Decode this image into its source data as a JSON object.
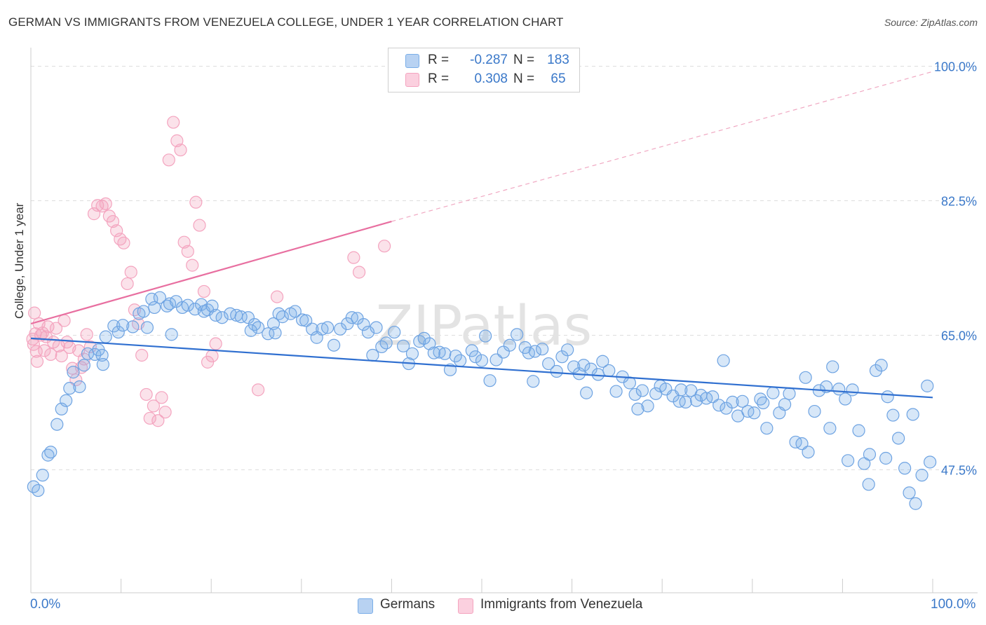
{
  "title": "GERMAN VS IMMIGRANTS FROM VENEZUELA COLLEGE, UNDER 1 YEAR CORRELATION CHART",
  "source": "Source: ZipAtlas.com",
  "watermark": "ZIPatlas",
  "legend": {
    "rows": [
      {
        "r_label": "R =",
        "r_value": "-0.287",
        "n_label": "N =",
        "n_value": "183",
        "color": "#7aaee8"
      },
      {
        "r_label": "R =",
        "r_value": "0.308",
        "n_label": "N =",
        "n_value": "65",
        "color": "#f4a4bf"
      }
    ]
  },
  "bottom_legend": {
    "germans": "Germans",
    "venezuela": "Immigrants from Venezuela"
  },
  "chart_data": {
    "type": "scatter",
    "title": "GERMAN VS IMMIGRANTS FROM VENEZUELA COLLEGE, UNDER 1 YEAR CORRELATION CHART",
    "xlabel": "",
    "ylabel": "College, Under 1 year",
    "xlim": [
      0,
      100
    ],
    "ylim": [
      31.5,
      101.5
    ],
    "x_tick_labels": [
      "0.0%",
      "100.0%"
    ],
    "y_ticks": [
      47.5,
      65.0,
      82.5,
      100.0
    ],
    "y_tick_labels": [
      "47.5%",
      "65.0%",
      "82.5%",
      "100.0%"
    ],
    "grid": true,
    "series": [
      {
        "name": "Germans",
        "color": "#7aaee8",
        "line_color": "#2f6fd0",
        "trend": {
          "x0": 0,
          "y0": 64.6,
          "x1": 100,
          "y1": 56.9
        },
        "points": [
          [
            0.3,
            45.3
          ],
          [
            0.8,
            44.8
          ],
          [
            1.3,
            46.8
          ],
          [
            1.9,
            49.4
          ],
          [
            2.2,
            49.8
          ],
          [
            2.9,
            53.4
          ],
          [
            3.4,
            55.4
          ],
          [
            3.9,
            56.5
          ],
          [
            4.3,
            58.1
          ],
          [
            4.7,
            60.2
          ],
          [
            5.4,
            58.3
          ],
          [
            5.9,
            61.1
          ],
          [
            6.3,
            62.6
          ],
          [
            7.1,
            62.5
          ],
          [
            7.5,
            63.1
          ],
          [
            7.9,
            62.4
          ],
          [
            8.3,
            64.8
          ],
          [
            9.2,
            66.2
          ],
          [
            9.7,
            65.4
          ],
          [
            10.2,
            66.3
          ],
          [
            11.3,
            66.1
          ],
          [
            12.0,
            67.8
          ],
          [
            12.5,
            68.1
          ],
          [
            13.4,
            69.7
          ],
          [
            13.7,
            68.6
          ],
          [
            14.3,
            69.9
          ],
          [
            15.1,
            68.8
          ],
          [
            15.4,
            69.1
          ],
          [
            16.1,
            69.4
          ],
          [
            16.8,
            68.6
          ],
          [
            17.4,
            68.9
          ],
          [
            18.2,
            68.4
          ],
          [
            18.9,
            69.0
          ],
          [
            19.2,
            68.1
          ],
          [
            19.6,
            68.3
          ],
          [
            20.1,
            68.8
          ],
          [
            20.5,
            67.6
          ],
          [
            21.2,
            67.3
          ],
          [
            22.1,
            67.8
          ],
          [
            22.8,
            67.6
          ],
          [
            23.3,
            67.4
          ],
          [
            24.1,
            67.3
          ],
          [
            24.8,
            66.4
          ],
          [
            25.2,
            66.0
          ],
          [
            26.3,
            65.2
          ],
          [
            26.9,
            66.5
          ],
          [
            27.5,
            67.8
          ],
          [
            27.9,
            67.4
          ],
          [
            28.8,
            67.8
          ],
          [
            29.3,
            68.1
          ],
          [
            30.1,
            67.0
          ],
          [
            30.5,
            66.9
          ],
          [
            31.2,
            65.8
          ],
          [
            32.3,
            65.8
          ],
          [
            32.9,
            66.0
          ],
          [
            34.3,
            65.8
          ],
          [
            35.1,
            66.5
          ],
          [
            35.6,
            67.3
          ],
          [
            36.2,
            67.2
          ],
          [
            36.9,
            66.4
          ],
          [
            37.4,
            65.4
          ],
          [
            38.3,
            66.0
          ],
          [
            38.9,
            63.5
          ],
          [
            39.4,
            64.0
          ],
          [
            40.3,
            65.4
          ],
          [
            41.3,
            63.6
          ],
          [
            42.3,
            62.6
          ],
          [
            43.1,
            64.2
          ],
          [
            44.2,
            63.9
          ],
          [
            45.3,
            62.8
          ],
          [
            45.9,
            62.6
          ],
          [
            46.5,
            60.5
          ],
          [
            47.1,
            62.3
          ],
          [
            47.6,
            61.7
          ],
          [
            48.9,
            63.0
          ],
          [
            49.3,
            62.2
          ],
          [
            50.0,
            61.7
          ],
          [
            50.9,
            59.1
          ],
          [
            51.6,
            61.8
          ],
          [
            52.4,
            62.8
          ],
          [
            53.1,
            63.7
          ],
          [
            53.9,
            65.1
          ],
          [
            54.8,
            63.4
          ],
          [
            55.2,
            62.7
          ],
          [
            55.9,
            62.9
          ],
          [
            56.7,
            63.2
          ],
          [
            57.4,
            61.3
          ],
          [
            58.3,
            60.3
          ],
          [
            58.9,
            62.2
          ],
          [
            59.5,
            63.1
          ],
          [
            60.2,
            60.9
          ],
          [
            60.8,
            60.0
          ],
          [
            61.3,
            61.1
          ],
          [
            62.1,
            60.6
          ],
          [
            62.9,
            59.9
          ],
          [
            63.4,
            61.6
          ],
          [
            64.1,
            60.4
          ],
          [
            64.9,
            57.7
          ],
          [
            65.6,
            59.6
          ],
          [
            66.4,
            58.8
          ],
          [
            67.0,
            57.3
          ],
          [
            67.8,
            57.8
          ],
          [
            68.4,
            55.8
          ],
          [
            69.3,
            57.4
          ],
          [
            69.8,
            58.4
          ],
          [
            70.4,
            58.0
          ],
          [
            71.2,
            57.1
          ],
          [
            71.9,
            56.4
          ],
          [
            72.6,
            56.3
          ],
          [
            73.2,
            57.8
          ],
          [
            73.8,
            56.5
          ],
          [
            74.3,
            57.2
          ],
          [
            74.9,
            56.8
          ],
          [
            75.6,
            57.0
          ],
          [
            76.3,
            55.9
          ],
          [
            77.1,
            55.5
          ],
          [
            77.8,
            56.3
          ],
          [
            78.4,
            54.5
          ],
          [
            78.9,
            56.4
          ],
          [
            79.5,
            55.1
          ],
          [
            80.2,
            54.9
          ],
          [
            80.9,
            56.7
          ],
          [
            81.6,
            52.9
          ],
          [
            82.3,
            57.5
          ],
          [
            83.0,
            54.9
          ],
          [
            83.6,
            56.0
          ],
          [
            84.1,
            57.4
          ],
          [
            84.8,
            51.1
          ],
          [
            85.5,
            50.9
          ],
          [
            86.2,
            49.8
          ],
          [
            86.9,
            55.1
          ],
          [
            87.4,
            57.8
          ],
          [
            88.2,
            58.3
          ],
          [
            88.9,
            60.9
          ],
          [
            89.6,
            58.0
          ],
          [
            90.3,
            56.7
          ],
          [
            91.1,
            57.9
          ],
          [
            91.8,
            52.6
          ],
          [
            92.4,
            48.3
          ],
          [
            93.0,
            49.5
          ],
          [
            93.7,
            60.4
          ],
          [
            94.3,
            61.1
          ],
          [
            95.0,
            57.0
          ],
          [
            95.6,
            54.6
          ],
          [
            96.2,
            51.6
          ],
          [
            96.9,
            47.7
          ],
          [
            97.4,
            44.5
          ],
          [
            98.1,
            43.1
          ],
          [
            98.8,
            46.8
          ],
          [
            99.4,
            58.4
          ],
          [
            99.7,
            48.5
          ],
          [
            8.0,
            61.2
          ],
          [
            12.9,
            66.0
          ],
          [
            15.6,
            65.1
          ],
          [
            24.4,
            65.6
          ],
          [
            31.7,
            64.7
          ],
          [
            37.9,
            62.4
          ],
          [
            41.9,
            61.3
          ],
          [
            44.7,
            62.7
          ],
          [
            50.4,
            64.9
          ],
          [
            55.7,
            59.0
          ],
          [
            61.6,
            57.5
          ],
          [
            67.3,
            55.4
          ],
          [
            72.1,
            57.9
          ],
          [
            76.8,
            61.7
          ],
          [
            81.2,
            56.2
          ],
          [
            85.9,
            59.5
          ],
          [
            88.6,
            52.9
          ],
          [
            90.6,
            48.7
          ],
          [
            92.9,
            45.6
          ],
          [
            94.8,
            49.0
          ],
          [
            97.8,
            54.7
          ],
          [
            27.1,
            65.3
          ],
          [
            33.6,
            63.7
          ],
          [
            43.6,
            64.6
          ]
        ]
      },
      {
        "name": "Immigrants from Venezuela",
        "color": "#f4a4bf",
        "line_color": "#e86fa0",
        "trend": {
          "x0": 0,
          "y0": 66.5,
          "x1": 40,
          "y1": 79.8
        },
        "trend_extension": {
          "x0": 40,
          "y0": 79.8,
          "x1": 100,
          "y1": 99.3
        },
        "points": [
          [
            0.2,
            64.5
          ],
          [
            0.3,
            63.8
          ],
          [
            0.4,
            67.9
          ],
          [
            0.5,
            65.2
          ],
          [
            0.6,
            62.9
          ],
          [
            0.7,
            61.6
          ],
          [
            0.9,
            66.5
          ],
          [
            1.1,
            65.0
          ],
          [
            1.3,
            65.3
          ],
          [
            1.5,
            63.0
          ],
          [
            1.7,
            64.8
          ],
          [
            1.9,
            66.1
          ],
          [
            2.2,
            62.5
          ],
          [
            2.5,
            64.1
          ],
          [
            2.8,
            65.9
          ],
          [
            3.1,
            63.6
          ],
          [
            3.4,
            62.3
          ],
          [
            3.7,
            66.9
          ],
          [
            4.0,
            64.1
          ],
          [
            4.3,
            63.4
          ],
          [
            4.6,
            60.7
          ],
          [
            5.0,
            59.2
          ],
          [
            5.3,
            63.0
          ],
          [
            5.6,
            60.8
          ],
          [
            5.9,
            61.9
          ],
          [
            6.2,
            65.1
          ],
          [
            6.6,
            63.5
          ],
          [
            7.0,
            80.8
          ],
          [
            7.4,
            81.9
          ],
          [
            7.9,
            81.8
          ],
          [
            8.3,
            82.1
          ],
          [
            8.7,
            80.5
          ],
          [
            9.1,
            79.8
          ],
          [
            9.5,
            78.6
          ],
          [
            9.9,
            77.5
          ],
          [
            10.3,
            77.0
          ],
          [
            10.7,
            71.7
          ],
          [
            11.1,
            73.2
          ],
          [
            11.5,
            68.3
          ],
          [
            11.9,
            66.5
          ],
          [
            12.3,
            62.4
          ],
          [
            12.8,
            57.3
          ],
          [
            13.2,
            54.2
          ],
          [
            13.6,
            55.8
          ],
          [
            14.1,
            53.9
          ],
          [
            14.5,
            56.9
          ],
          [
            14.9,
            55.0
          ],
          [
            15.3,
            87.8
          ],
          [
            15.8,
            92.7
          ],
          [
            16.2,
            90.3
          ],
          [
            16.6,
            89.1
          ],
          [
            17.0,
            77.1
          ],
          [
            17.4,
            75.9
          ],
          [
            17.9,
            74.1
          ],
          [
            18.3,
            82.3
          ],
          [
            18.7,
            79.3
          ],
          [
            19.2,
            70.7
          ],
          [
            19.6,
            61.5
          ],
          [
            20.1,
            62.3
          ],
          [
            20.5,
            63.9
          ],
          [
            25.2,
            57.9
          ],
          [
            27.3,
            70.0
          ],
          [
            35.8,
            75.1
          ],
          [
            36.4,
            73.2
          ],
          [
            39.2,
            76.6
          ]
        ]
      }
    ]
  }
}
